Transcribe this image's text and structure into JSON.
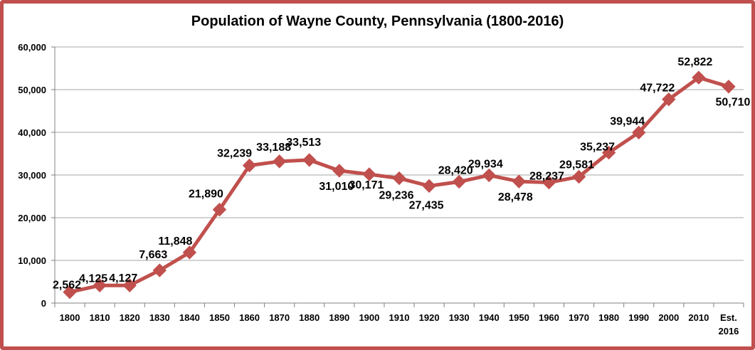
{
  "chart_data": {
    "type": "line",
    "title": "Population of Wayne County, Pennsylvania (1800-2016)",
    "xlabel": "",
    "ylabel": "",
    "ylim": [
      0,
      60000
    ],
    "yticks": [
      0,
      10000,
      20000,
      30000,
      40000,
      50000,
      60000
    ],
    "ytick_labels": [
      "0",
      "10,000",
      "20,000",
      "30,000",
      "40,000",
      "50,000",
      "60,000"
    ],
    "grid": true,
    "legend": "none",
    "categories": [
      "1800",
      "1810",
      "1820",
      "1830",
      "1840",
      "1850",
      "1860",
      "1870",
      "1880",
      "1890",
      "1900",
      "1910",
      "1920",
      "1930",
      "1940",
      "1950",
      "1960",
      "1970",
      "1980",
      "1990",
      "2000",
      "2010",
      "Est. 2016"
    ],
    "series": [
      {
        "name": "Population",
        "color": "#C0504D",
        "values": [
          2562,
          4125,
          4127,
          7663,
          11848,
          21890,
          32239,
          33188,
          33513,
          31010,
          30171,
          29236,
          27435,
          28420,
          29934,
          28478,
          28237,
          29581,
          35237,
          39944,
          47722,
          52822,
          50710
        ],
        "labels": [
          "2,562",
          "4,125",
          "4,127",
          "7,663",
          "11,848",
          "21,890",
          "32,239",
          "33,188",
          "33,513",
          "31,010",
          "30,171",
          "29,236",
          "27,435",
          "28,420",
          "29,934",
          "28,478",
          "28,237",
          "29,581",
          "35,237",
          "39,944",
          "47,722",
          "52,822",
          "50,710"
        ]
      }
    ]
  },
  "colors": {
    "border": "#C0504D",
    "line": "#C0504D",
    "grid": "#A6A6A6"
  }
}
